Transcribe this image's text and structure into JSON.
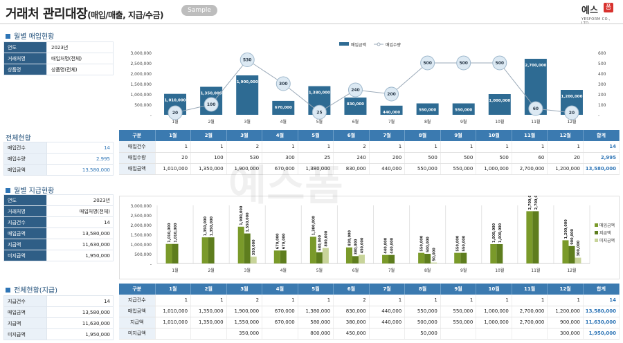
{
  "header": {
    "title": "거래처 관리대장",
    "subtitle": "(매입/매출, 지급/수금)",
    "badge": "Sample",
    "logo_text": "예스",
    "logo_badge": "폼",
    "logo_sub": "YESFORM CO., LTD."
  },
  "watermark": "예스폼",
  "sections": {
    "monthly_purchase": "월별 매입현황",
    "overall": "전체현황",
    "monthly_payment": "월별 지급현황",
    "overall_payment": "전체현황(지급)"
  },
  "filter1": [
    {
      "k": "연도",
      "v": "2023년"
    },
    {
      "k": "거래처명",
      "v": "매입처명(전체)"
    },
    {
      "k": "상품명",
      "v": "상품명(전체)"
    }
  ],
  "summary1": [
    {
      "k": "매입건수",
      "v": "14"
    },
    {
      "k": "매입수량",
      "v": "2,995"
    },
    {
      "k": "매입금액",
      "v": "13,580,000"
    }
  ],
  "filter2": [
    {
      "k": "연도",
      "v": "2023년"
    },
    {
      "k": "거래처명",
      "v": "매입처명(전체)"
    }
  ],
  "summary2": [
    {
      "k": "지급건수",
      "v": "14"
    },
    {
      "k": "매입금액",
      "v": "13,580,000"
    },
    {
      "k": "지급액",
      "v": "11,630,000"
    },
    {
      "k": "미지급액",
      "v": "1,950,000"
    }
  ],
  "summary3": [
    {
      "k": "지급건수",
      "v": "14"
    },
    {
      "k": "매입금액",
      "v": "13,580,000"
    },
    {
      "k": "지급액",
      "v": "11,630,000"
    },
    {
      "k": "미지급액",
      "v": "1,950,000"
    }
  ],
  "table1": {
    "header": [
      "구분",
      "1월",
      "2월",
      "3월",
      "4월",
      "5월",
      "6월",
      "7월",
      "8월",
      "9월",
      "10월",
      "11월",
      "12월",
      "합계"
    ],
    "rows": [
      [
        "매입건수",
        "1",
        "1",
        "2",
        "1",
        "1",
        "2",
        "1",
        "1",
        "1",
        "1",
        "1",
        "1",
        "14"
      ],
      [
        "매입수량",
        "20",
        "100",
        "530",
        "300",
        "25",
        "240",
        "200",
        "500",
        "500",
        "500",
        "60",
        "20",
        "2,995"
      ],
      [
        "매입금액",
        "1,010,000",
        "1,350,000",
        "1,900,000",
        "670,000",
        "1,380,000",
        "830,000",
        "440,000",
        "550,000",
        "550,000",
        "1,000,000",
        "2,700,000",
        "1,200,000",
        "13,580,000"
      ]
    ]
  },
  "table2": {
    "header": [
      "구분",
      "1월",
      "2월",
      "3월",
      "4월",
      "5월",
      "6월",
      "7월",
      "8월",
      "9월",
      "10월",
      "11월",
      "12월",
      "합계"
    ],
    "rows": [
      [
        "지급건수",
        "1",
        "1",
        "2",
        "1",
        "1",
        "2",
        "1",
        "1",
        "1",
        "1",
        "1",
        "1",
        "14"
      ],
      [
        "매입금액",
        "1,010,000",
        "1,350,000",
        "1,900,000",
        "670,000",
        "1,380,000",
        "830,000",
        "440,000",
        "550,000",
        "550,000",
        "1,000,000",
        "2,700,000",
        "1,200,000",
        "13,580,000"
      ],
      [
        "지급액",
        "1,010,000",
        "1,350,000",
        "1,550,000",
        "670,000",
        "580,000",
        "380,000",
        "440,000",
        "500,000",
        "550,000",
        "1,000,000",
        "2,700,000",
        "900,000",
        "11,630,000"
      ],
      [
        "미지급액",
        "",
        "",
        "350,000",
        "",
        "800,000",
        "450,000",
        "",
        "50,000",
        "",
        "",
        "",
        "300,000",
        "1,950,000"
      ]
    ]
  },
  "chart_data": [
    {
      "type": "bar",
      "categories": [
        "1월",
        "2월",
        "3월",
        "4월",
        "5월",
        "6월",
        "7월",
        "8월",
        "9월",
        "10월",
        "11월",
        "12월"
      ],
      "series": [
        {
          "name": "매입금액",
          "type": "bar",
          "axis": "left",
          "color": "#2e6b93",
          "values": [
            1010000,
            1350000,
            1900000,
            670000,
            1380000,
            830000,
            440000,
            550000,
            550000,
            1000000,
            2700000,
            1200000
          ]
        },
        {
          "name": "매입수량",
          "type": "line",
          "axis": "right",
          "color": "#9aa9b8",
          "values": [
            20,
            100,
            530,
            300,
            25,
            240,
            200,
            500,
            500,
            500,
            60,
            20
          ]
        }
      ],
      "ylim": [
        0,
        3000000
      ],
      "y2lim": [
        0,
        600
      ],
      "yticks": [
        "-",
        "500,000",
        "1,000,000",
        "1,500,000",
        "2,000,000",
        "2,500,000",
        "3,000,000"
      ],
      "y2ticks": [
        "-",
        "100",
        "200",
        "300",
        "400",
        "500",
        "600"
      ],
      "legend": "top-center",
      "grid": false
    },
    {
      "type": "bar",
      "categories": [
        "1월",
        "2월",
        "3월",
        "4월",
        "5월",
        "6월",
        "7월",
        "8월",
        "9월",
        "10월",
        "11월",
        "12월"
      ],
      "series": [
        {
          "name": "매입금액",
          "color": "#7a9a2a",
          "values": [
            1010000,
            1350000,
            1900000,
            670000,
            1380000,
            830000,
            440000,
            550000,
            550000,
            1000000,
            2700000,
            1200000
          ]
        },
        {
          "name": "지급액",
          "color": "#5e7d1e",
          "values": [
            1010000,
            1350000,
            1550000,
            670000,
            580000,
            380000,
            440000,
            500000,
            550000,
            1000000,
            2700000,
            900000
          ]
        },
        {
          "name": "미지급액",
          "color": "#c8d49a",
          "values": [
            null,
            null,
            350000,
            null,
            800000,
            450000,
            null,
            50000,
            null,
            null,
            null,
            300000
          ]
        }
      ],
      "ylim": [
        0,
        3000000
      ],
      "yticks": [
        "-",
        "500,000",
        "1,000,000",
        "1,500,000",
        "2,000,000",
        "2,500,000",
        "3,000,000"
      ],
      "legend": "right",
      "grid": true
    }
  ]
}
